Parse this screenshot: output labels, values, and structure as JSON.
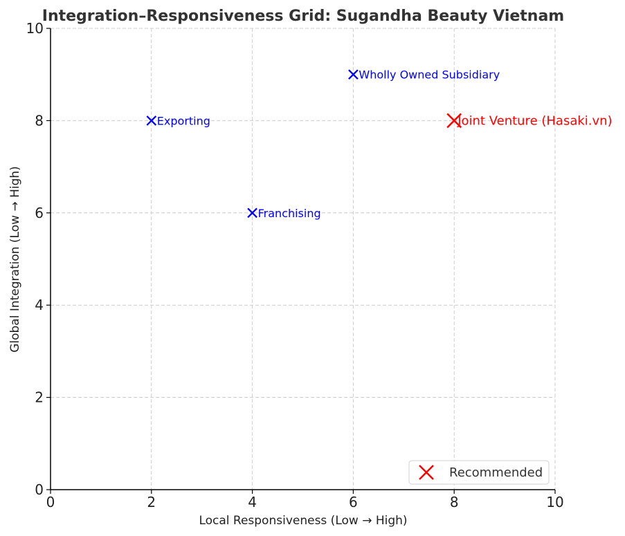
{
  "chart_data": {
    "type": "scatter",
    "title": "Integration–Responsiveness Grid: Sugandha Beauty Vietnam",
    "xlabel": "Local Responsiveness (Low → High)",
    "ylabel": "Global Integration (Low → High)",
    "xlim": [
      0,
      10
    ],
    "ylim": [
      0,
      10
    ],
    "xticks": [
      "0",
      "2",
      "4",
      "6",
      "8",
      "10"
    ],
    "yticks": [
      "0",
      "2",
      "4",
      "6",
      "8",
      "10"
    ],
    "grid": true,
    "legend_position": "lower-right",
    "points": [
      {
        "label": "Exporting",
        "x": 2,
        "y": 8,
        "color": "#0000ff",
        "recommended": false
      },
      {
        "label": "Franchising",
        "x": 4,
        "y": 6,
        "color": "#0000ff",
        "recommended": false
      },
      {
        "label": "Wholly Owned Subsidiary",
        "x": 6,
        "y": 9,
        "color": "#0000ff",
        "recommended": false
      },
      {
        "label": "Joint Venture (Hasaki.vn)",
        "x": 8,
        "y": 8,
        "color": "#ff0000",
        "recommended": true
      }
    ],
    "legend": [
      {
        "label": "Recommended",
        "color": "#ff0000",
        "marker": "x"
      }
    ]
  }
}
